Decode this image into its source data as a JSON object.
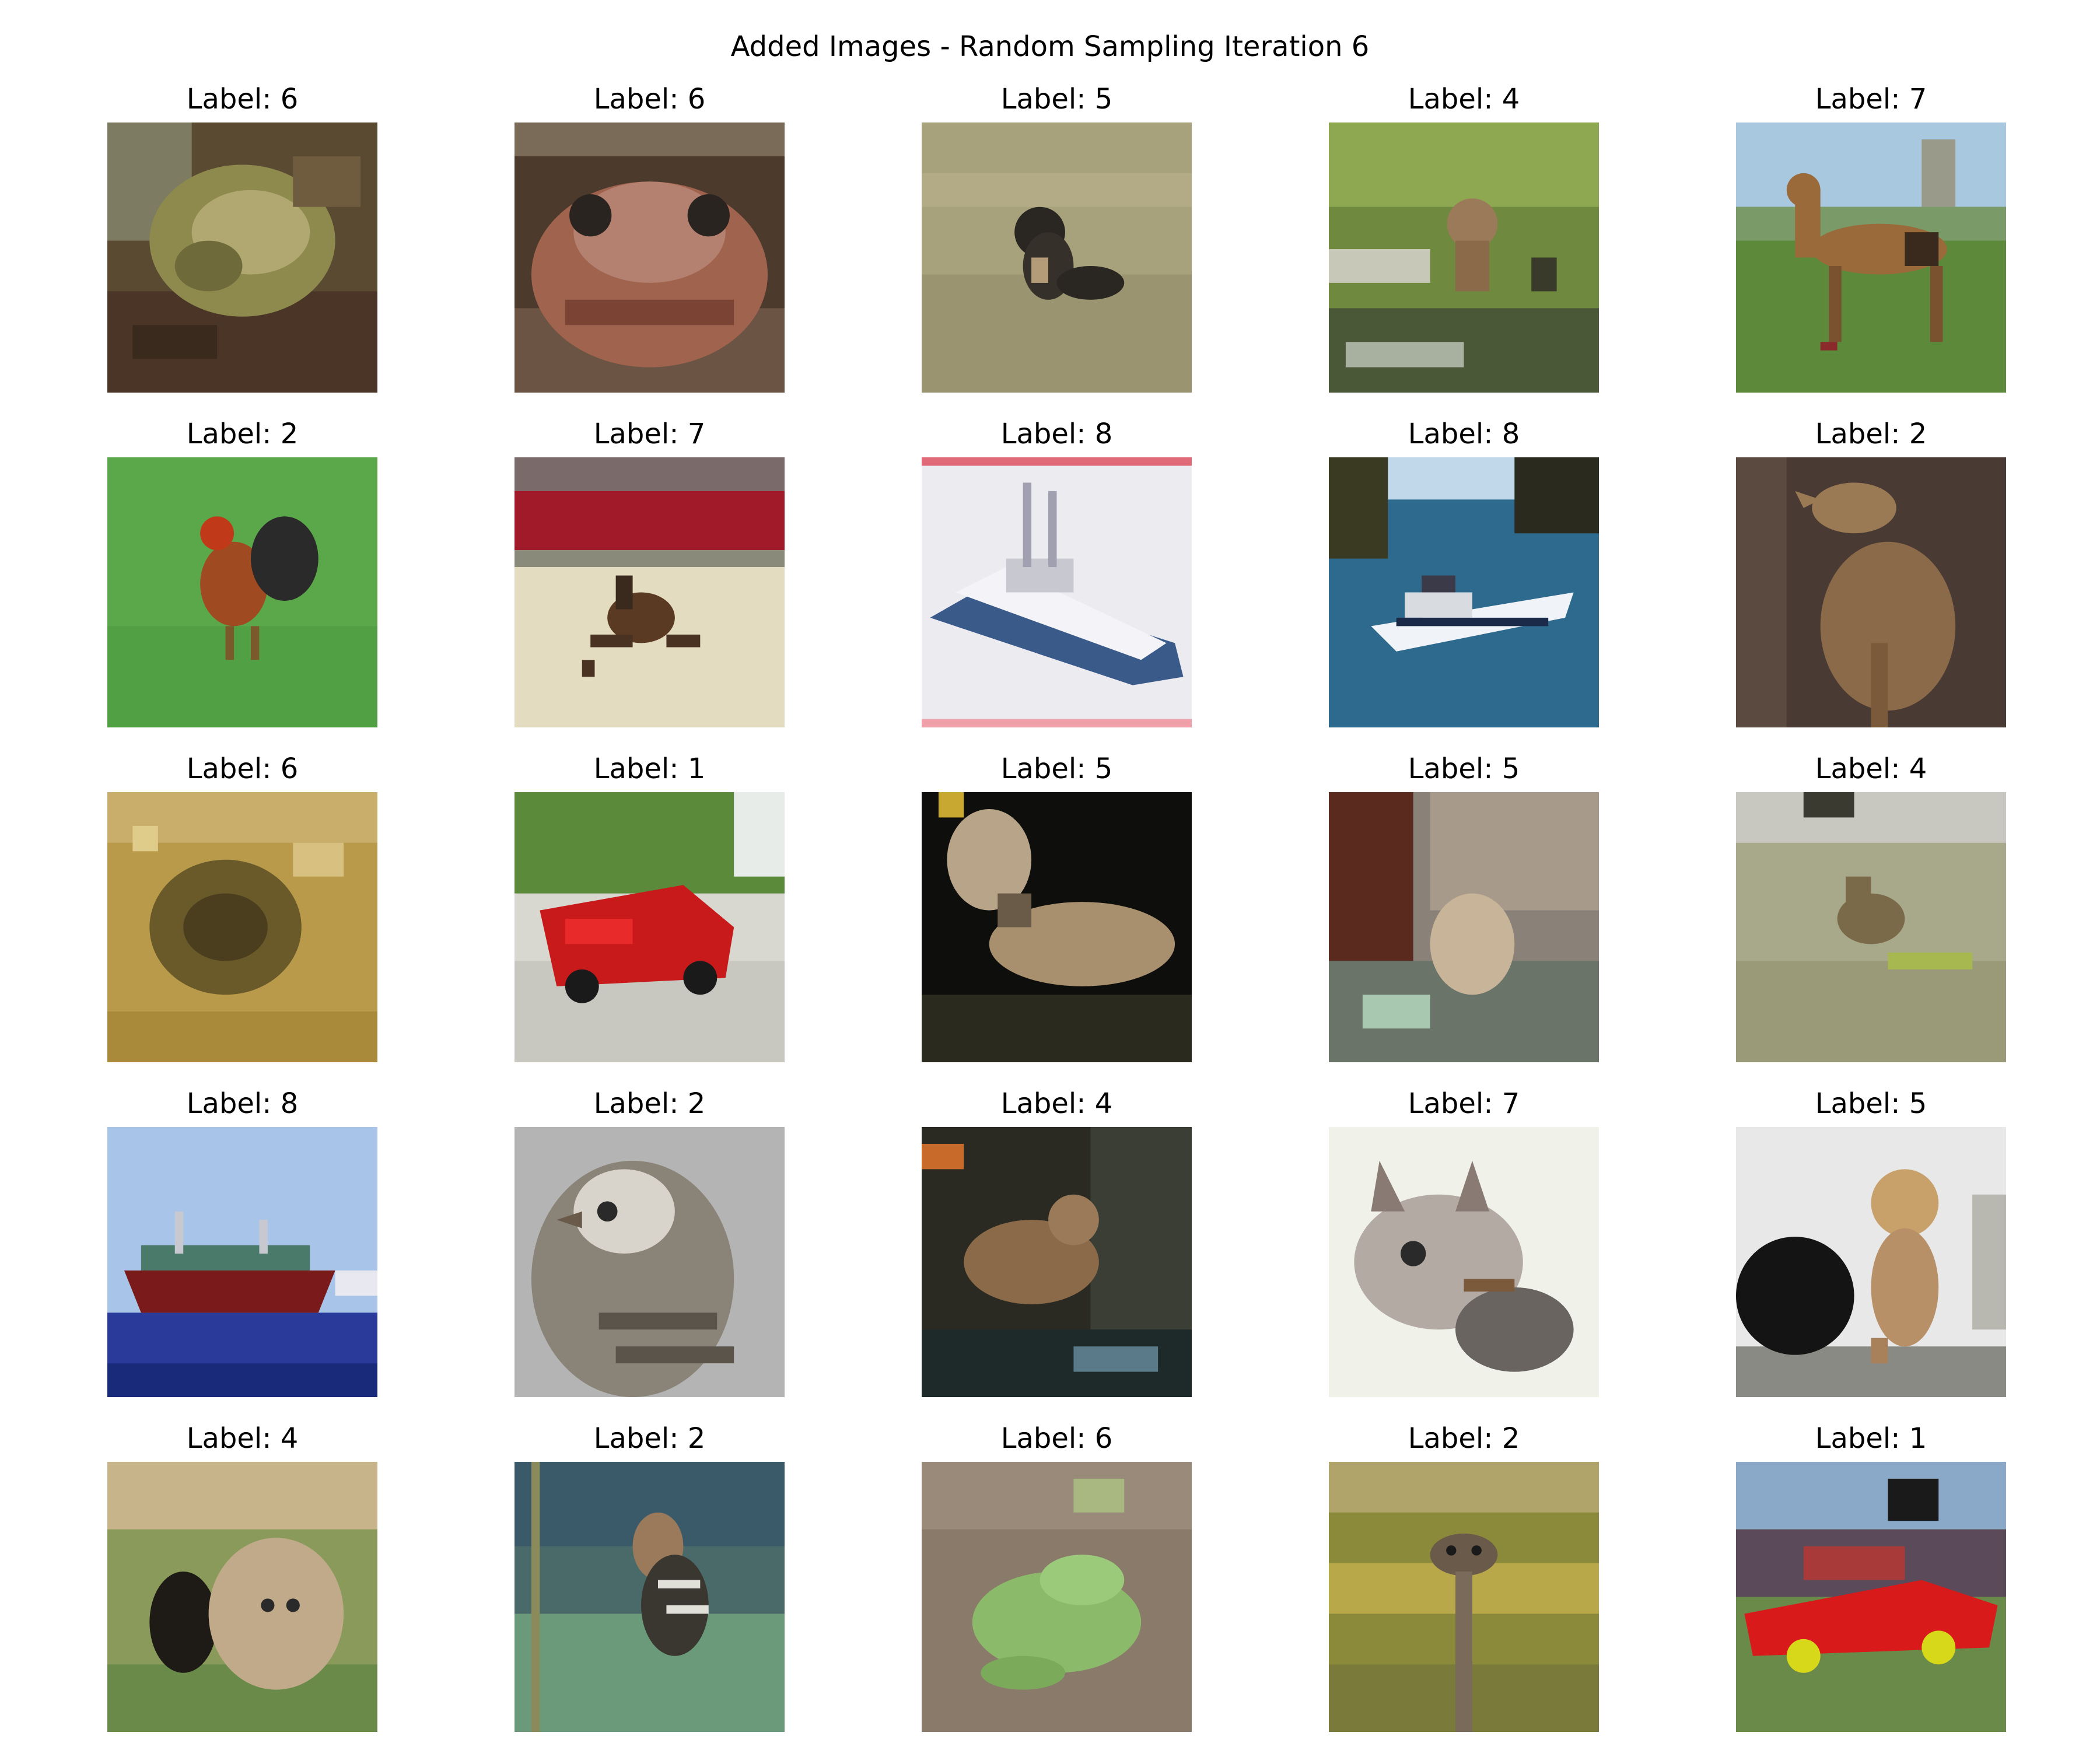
{
  "figure": {
    "title": "Added Images - Random Sampling Iteration 6"
  },
  "grid": {
    "label_prefix": "Label: ",
    "cells": [
      {
        "label": "Label: 6",
        "subject": "frog"
      },
      {
        "label": "Label: 6",
        "subject": "frog"
      },
      {
        "label": "Label: 5",
        "subject": "dog"
      },
      {
        "label": "Label: 4",
        "subject": "deer"
      },
      {
        "label": "Label: 7",
        "subject": "horse"
      },
      {
        "label": "Label: 2",
        "subject": "bird"
      },
      {
        "label": "Label: 7",
        "subject": "horse"
      },
      {
        "label": "Label: 8",
        "subject": "ship"
      },
      {
        "label": "Label: 8",
        "subject": "ship"
      },
      {
        "label": "Label: 2",
        "subject": "bird"
      },
      {
        "label": "Label: 6",
        "subject": "frog"
      },
      {
        "label": "Label: 1",
        "subject": "automobile"
      },
      {
        "label": "Label: 5",
        "subject": "dog"
      },
      {
        "label": "Label: 5",
        "subject": "dog"
      },
      {
        "label": "Label: 4",
        "subject": "deer"
      },
      {
        "label": "Label: 8",
        "subject": "ship"
      },
      {
        "label": "Label: 2",
        "subject": "bird"
      },
      {
        "label": "Label: 4",
        "subject": "deer"
      },
      {
        "label": "Label: 7",
        "subject": "horse"
      },
      {
        "label": "Label: 5",
        "subject": "dog"
      },
      {
        "label": "Label: 4",
        "subject": "deer"
      },
      {
        "label": "Label: 2",
        "subject": "bird"
      },
      {
        "label": "Label: 6",
        "subject": "frog"
      },
      {
        "label": "Label: 2",
        "subject": "bird"
      },
      {
        "label": "Label: 1",
        "subject": "automobile"
      }
    ]
  },
  "colors": {
    "background": "#ffffff",
    "text": "#000000"
  }
}
